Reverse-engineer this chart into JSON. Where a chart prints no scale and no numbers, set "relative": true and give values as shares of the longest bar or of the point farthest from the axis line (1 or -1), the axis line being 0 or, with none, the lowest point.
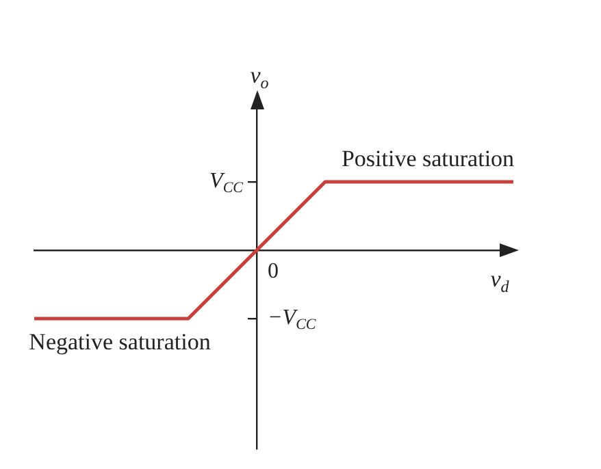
{
  "chart_data": {
    "type": "line",
    "relative": true,
    "xlabel": "v$_{d}$",
    "ylabel": "v$_{o}$",
    "categories": [
      null,
      null,
      null,
      null,
      null,
      null,
      null,
      null,
      null,
      null,
      null,
      null,
      null,
      null,
      null,
      null,
      null,
      null,
      null,
      null,
      null,
      null,
      null,
      null,
      null,
      null,
      null,
      null,
      null
    ],
    "series": [
      {
        "color": "#c8403a",
        "values": [
          -1,
          -1,
          -1,
          -1,
          -1,
          -1,
          -1,
          -1,
          -1,
          -1,
          -0.75,
          -0.5,
          -0.25,
          0,
          0.25,
          0.5,
          0.75,
          1,
          1,
          1,
          1,
          1,
          1,
          1,
          1,
          1,
          1,
          1,
          1
        ]
      }
    ],
    "annotations": [
      "V$_{CC}$",
      "−V$_{CC}$",
      "0",
      "Positive saturation",
      "Negative saturation"
    ],
    "legend": false,
    "marker": "none",
    "line_style": "solid"
  }
}
